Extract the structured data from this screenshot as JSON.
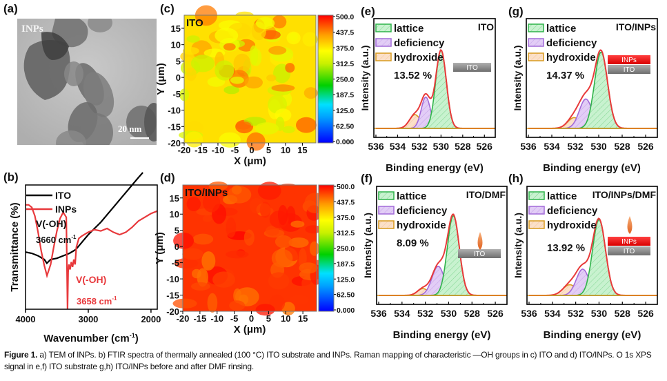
{
  "figure": {
    "caption_label": "Figure 1.",
    "caption_text": " a) TEM of INPs. b) FTIR spectra of thermally annealed (100 °C) ITO substrate and INPs. Raman mapping of characteristic —OH groups in c) ITO and d) ITO/INPs. O 1s XPS signal in e,f) ITO substrate g,h) ITO/INPs before and after DMF rinsing."
  },
  "panels": {
    "a": {
      "label": "(a)",
      "title": "INPs",
      "scale_bar": "20 nm"
    },
    "b": {
      "label": "(b)"
    },
    "c": {
      "label": "(c)"
    },
    "d": {
      "label": "(d)"
    },
    "e": {
      "label": "(e)"
    },
    "f": {
      "label": "(f)"
    },
    "g": {
      "label": "(g)"
    },
    "h": {
      "label": "(h)"
    }
  },
  "colors": {
    "ito_line": "#000000",
    "inps_line": "#e8393c",
    "lattice": "#2fb34a",
    "deficiency": "#a26ad9",
    "hydroxide": "#d89a1e",
    "envelope": "#e83a3a",
    "ito_block": "#8c8c8c",
    "inps_block": "#ee1c24",
    "droplet": "#e8732a"
  },
  "chart_data": [
    {
      "id": "b",
      "type": "line",
      "title": "",
      "xlabel": "Wavenumber (cm-1)",
      "ylabel": "Transmittance (%)",
      "xlim": [
        4000,
        1900
      ],
      "xticks": [
        "4000",
        "3000",
        "2000"
      ],
      "ylim": [
        0,
        100
      ],
      "legend": {
        "position": "top-left",
        "entries": [
          "ITO",
          "INPs"
        ]
      },
      "series": [
        {
          "name": "ITO",
          "x": [
            4000,
            3900,
            3800,
            3700,
            3660,
            3600,
            3500,
            3400,
            3300,
            3200,
            3100,
            3000,
            2900,
            2800,
            2700,
            2600,
            2500,
            2400,
            2300,
            2200,
            2130
          ],
          "y": [
            46,
            45,
            43,
            40,
            37,
            40,
            41,
            43,
            45,
            48,
            54,
            60,
            65,
            70,
            76,
            82,
            88,
            94,
            100,
            106,
            110
          ]
        },
        {
          "name": "INPs",
          "x": [
            4000,
            3950,
            3900,
            3850,
            3800,
            3750,
            3700,
            3658,
            3600,
            3550,
            3500,
            3450,
            3400,
            3350,
            3330,
            3320,
            3310,
            3290,
            3270,
            3250,
            3230,
            3210,
            3190,
            3150,
            3100,
            3000,
            2900,
            2800,
            2700,
            2600,
            2500,
            2400,
            2300,
            2200,
            2100,
            2000,
            1900
          ],
          "y": [
            84,
            84,
            82,
            75,
            62,
            47,
            35,
            27,
            36,
            50,
            63,
            73,
            78,
            74,
            0,
            30,
            36,
            32,
            38,
            34,
            40,
            36,
            50,
            57,
            59,
            62,
            64,
            63,
            65,
            62,
            60,
            62,
            66,
            71,
            74,
            77,
            79
          ]
        }
      ],
      "annotations": [
        {
          "text": "V(-OH)",
          "color": "#000000",
          "target": "ITO"
        },
        {
          "text": "3660 cm",
          "sup": "-1",
          "color": "#000000"
        },
        {
          "text": "V(-OH)",
          "color": "#e8393c",
          "target": "INPs"
        },
        {
          "text": "3658 cm",
          "sup": "-1",
          "color": "#e8393c"
        }
      ]
    },
    {
      "id": "c",
      "type": "heatmap",
      "title": "ITO",
      "xlabel": "X (μm)",
      "ylabel": "Y (μm)",
      "xlim": [
        -20,
        19
      ],
      "ylim": [
        -20,
        19
      ],
      "xticks": [
        "-20",
        "-15",
        "-10",
        "-5",
        "0",
        "5",
        "10",
        "15"
      ],
      "yticks": [
        "-20",
        "-15",
        "-10",
        "-5",
        "0",
        "5",
        "10",
        "15"
      ],
      "colorbar": {
        "min": 0,
        "max": 500,
        "ticks": [
          "500.0",
          "437.5",
          "375.0",
          "312.5",
          "250.0",
          "187.5",
          "125.0",
          "62.50",
          "0.000"
        ]
      },
      "mean_value": 380,
      "value_range": [
        300,
        460
      ]
    },
    {
      "id": "d",
      "type": "heatmap",
      "title": "ITO/INPs",
      "xlabel": "X (μm)",
      "ylabel": "Y (μm)",
      "xlim": [
        -20,
        19
      ],
      "ylim": [
        -20,
        19
      ],
      "xticks": [
        "-20",
        "-15",
        "-10",
        "-5",
        "0",
        "5",
        "10",
        "15"
      ],
      "yticks": [
        "-20",
        "-15",
        "-10",
        "-5",
        "0",
        "5",
        "10",
        "15"
      ],
      "colorbar": {
        "min": 0,
        "max": 500,
        "ticks": [
          "500.0",
          "437.5",
          "375.0",
          "312.5",
          "250.0",
          "187.5",
          "125.0",
          "62.50",
          "0.000"
        ]
      },
      "mean_value": 475,
      "value_range": [
        440,
        500
      ]
    },
    {
      "id": "e",
      "type": "area",
      "sample": "ITO",
      "xlabel": "Binding energy (eV)",
      "ylabel": "Intensity (a.u.)",
      "xlim": [
        536,
        525
      ],
      "xticks": [
        "536",
        "534",
        "532",
        "530",
        "528",
        "526"
      ],
      "legend": {
        "position": "top-left",
        "entries": [
          "lattice",
          "deficiency",
          "hydroxide"
        ]
      },
      "percentage": "13.52 %",
      "inset": [
        "ITO"
      ],
      "droplet": false,
      "peaks": [
        {
          "name": "lattice",
          "center": 530.0,
          "height": 0.8,
          "fwhm": 1.15
        },
        {
          "name": "deficiency",
          "center": 531.4,
          "height": 0.32,
          "fwhm": 1.0
        },
        {
          "name": "hydroxide",
          "center": 532.4,
          "height": 0.14,
          "fwhm": 1.2
        }
      ]
    },
    {
      "id": "f",
      "type": "area",
      "sample": "ITO/DMF",
      "xlabel": "Binding energy (eV)",
      "ylabel": "Intensity (a.u.)",
      "xlim": [
        536,
        525
      ],
      "xticks": [
        "536",
        "534",
        "532",
        "530",
        "528",
        "526"
      ],
      "legend": {
        "position": "top-left",
        "entries": [
          "lattice",
          "deficiency",
          "hydroxide"
        ]
      },
      "percentage": "8.09 %",
      "inset": [
        "ITO"
      ],
      "droplet": true,
      "peaks": [
        {
          "name": "lattice",
          "center": 529.6,
          "height": 0.82,
          "fwhm": 1.2
        },
        {
          "name": "deficiency",
          "center": 530.9,
          "height": 0.3,
          "fwhm": 1.25
        },
        {
          "name": "hydroxide",
          "center": 532.2,
          "height": 0.07,
          "fwhm": 1.1
        }
      ]
    },
    {
      "id": "g",
      "type": "area",
      "sample": "ITO/INPs",
      "xlabel": "Binding energy (eV)",
      "ylabel": "Intensity (a.u.)",
      "xlim": [
        536,
        525
      ],
      "xticks": [
        "536",
        "534",
        "532",
        "530",
        "528",
        "526"
      ],
      "legend": {
        "position": "top-left",
        "entries": [
          "lattice",
          "deficiency",
          "hydroxide"
        ]
      },
      "percentage": "14.37 %",
      "inset": [
        "INPs",
        "ITO"
      ],
      "droplet": false,
      "peaks": [
        {
          "name": "lattice",
          "center": 529.8,
          "height": 0.78,
          "fwhm": 1.3
        },
        {
          "name": "deficiency",
          "center": 531.1,
          "height": 0.3,
          "fwhm": 1.3
        },
        {
          "name": "hydroxide",
          "center": 532.1,
          "height": 0.11,
          "fwhm": 1.3
        }
      ]
    },
    {
      "id": "h",
      "type": "area",
      "sample": "ITO/INPs/DMF",
      "xlabel": "Binding energy (eV)",
      "ylabel": "Intensity (a.u.)",
      "xlim": [
        536,
        525
      ],
      "xticks": [
        "536",
        "534",
        "532",
        "530",
        "528",
        "526"
      ],
      "legend": {
        "position": "top-left",
        "entries": [
          "lattice",
          "deficiency",
          "hydroxide"
        ]
      },
      "percentage": "13.92 %",
      "inset": [
        "INPs",
        "ITO"
      ],
      "droplet": true,
      "peaks": [
        {
          "name": "lattice",
          "center": 530.0,
          "height": 0.78,
          "fwhm": 1.3
        },
        {
          "name": "deficiency",
          "center": 531.4,
          "height": 0.27,
          "fwhm": 1.3
        },
        {
          "name": "hydroxide",
          "center": 532.5,
          "height": 0.11,
          "fwhm": 1.4
        }
      ]
    }
  ]
}
